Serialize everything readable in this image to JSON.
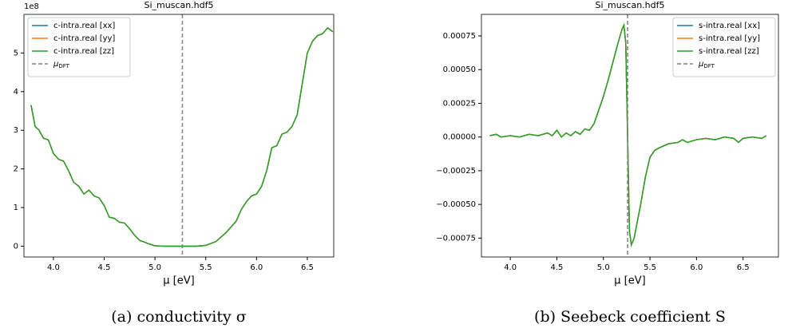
{
  "chart_data": [
    {
      "type": "line",
      "title": "Si_muscan.hdf5",
      "xlabel": "μ [eV]",
      "caption": "(a) conductivity σ",
      "offset_text": "1e8",
      "x": [
        3.78,
        3.82,
        3.86,
        3.9,
        3.95,
        4.0,
        4.05,
        4.1,
        4.15,
        4.2,
        4.25,
        4.3,
        4.35,
        4.4,
        4.45,
        4.5,
        4.55,
        4.6,
        4.65,
        4.7,
        4.75,
        4.8,
        4.85,
        4.9,
        4.95,
        5.0,
        5.1,
        5.2,
        5.3,
        5.4,
        5.5,
        5.6,
        5.7,
        5.8,
        5.85,
        5.9,
        5.95,
        6.0,
        6.05,
        6.1,
        6.15,
        6.2,
        6.25,
        6.3,
        6.35,
        6.4,
        6.45,
        6.5,
        6.55,
        6.6,
        6.65,
        6.7,
        6.75
      ],
      "series": [
        {
          "name": "c-intra.real [xx]",
          "color": "#1f77b4",
          "values": [
            3.65,
            3.1,
            3.0,
            2.8,
            2.75,
            2.4,
            2.25,
            2.2,
            1.95,
            1.65,
            1.55,
            1.35,
            1.45,
            1.3,
            1.25,
            1.05,
            0.75,
            0.72,
            0.62,
            0.6,
            0.45,
            0.28,
            0.15,
            0.1,
            0.05,
            0.01,
            0,
            0,
            0,
            0,
            0.02,
            0.12,
            0.35,
            0.65,
            0.95,
            1.15,
            1.3,
            1.35,
            1.55,
            1.95,
            2.55,
            2.6,
            2.9,
            2.95,
            3.1,
            3.4,
            4.2,
            5.0,
            5.3,
            5.45,
            5.5,
            5.65,
            5.55
          ]
        },
        {
          "name": "c-intra.real [yy]",
          "color": "#ff7f0e",
          "values": [
            3.65,
            3.1,
            3.0,
            2.8,
            2.75,
            2.4,
            2.25,
            2.2,
            1.95,
            1.65,
            1.55,
            1.35,
            1.45,
            1.3,
            1.25,
            1.05,
            0.75,
            0.72,
            0.62,
            0.6,
            0.45,
            0.28,
            0.15,
            0.1,
            0.05,
            0.01,
            0,
            0,
            0,
            0,
            0.02,
            0.12,
            0.35,
            0.65,
            0.95,
            1.15,
            1.3,
            1.35,
            1.55,
            1.95,
            2.55,
            2.6,
            2.9,
            2.95,
            3.1,
            3.4,
            4.2,
            5.0,
            5.3,
            5.45,
            5.5,
            5.65,
            5.55
          ]
        },
        {
          "name": "c-intra.real [zz]",
          "color": "#2ca02c",
          "values": [
            3.65,
            3.1,
            3.0,
            2.8,
            2.75,
            2.4,
            2.25,
            2.2,
            1.95,
            1.65,
            1.55,
            1.35,
            1.45,
            1.3,
            1.25,
            1.05,
            0.75,
            0.72,
            0.62,
            0.6,
            0.45,
            0.28,
            0.15,
            0.1,
            0.05,
            0.01,
            0,
            0,
            0,
            0,
            0.02,
            0.12,
            0.35,
            0.65,
            0.95,
            1.15,
            1.3,
            1.35,
            1.55,
            1.95,
            2.55,
            2.6,
            2.9,
            2.95,
            3.1,
            3.4,
            4.2,
            5.0,
            5.3,
            5.45,
            5.5,
            5.65,
            5.55
          ]
        }
      ],
      "vline": {
        "x": 5.27,
        "label": "μ",
        "label_sub": "DFT",
        "color": "#808080"
      },
      "xlim": [
        3.71,
        6.76
      ],
      "xticks": [
        {
          "value": 4.0,
          "label": "4.0"
        },
        4.5,
        {
          "value": 5.0,
          "label": "5.0"
        },
        5.5,
        {
          "value": 6.0,
          "label": "6.0"
        },
        6.5
      ],
      "ylim": [
        -0.28,
        6.0
      ],
      "yticks": [
        0,
        1,
        2,
        3,
        4,
        5
      ],
      "legend": "upper left"
    },
    {
      "type": "line",
      "title": "Si_muscan.hdf5",
      "xlabel": "μ [eV]",
      "caption": "(b) Seebeck coefficient S",
      "x": [
        3.78,
        3.85,
        3.9,
        4.0,
        4.1,
        4.2,
        4.3,
        4.4,
        4.45,
        4.5,
        4.55,
        4.6,
        4.65,
        4.7,
        4.75,
        4.8,
        4.85,
        4.9,
        4.95,
        5.0,
        5.05,
        5.1,
        5.15,
        5.2,
        5.22,
        5.24,
        5.26,
        5.28,
        5.3,
        5.33,
        5.4,
        5.45,
        5.5,
        5.55,
        5.6,
        5.7,
        5.8,
        5.85,
        5.9,
        6.0,
        6.1,
        6.2,
        6.3,
        6.4,
        6.45,
        6.5,
        6.6,
        6.7,
        6.75
      ],
      "series": [
        {
          "name": "s-intra.real [xx]",
          "color": "#1f77b4",
          "values": [
            1e-05,
            2e-05,
            0.0,
            1e-05,
            0.0,
            2e-05,
            1e-05,
            3e-05,
            1e-05,
            5e-05,
            0.0,
            3e-05,
            1e-05,
            4e-05,
            2e-05,
            6e-05,
            5e-05,
            0.0001,
            0.0002,
            0.0003,
            0.00042,
            0.00055,
            0.00068,
            0.0008,
            0.00083,
            0.0007,
            0.0,
            -0.0007,
            -0.0008,
            -0.00075,
            -0.0005,
            -0.0003,
            -0.00015,
            -0.0001,
            -8e-05,
            -5e-05,
            -4e-05,
            -2e-05,
            -4e-05,
            -2e-05,
            -1e-05,
            -2e-05,
            0.0,
            -1e-05,
            -4e-05,
            -1e-05,
            0.0,
            -1e-05,
            1e-05
          ]
        },
        {
          "name": "s-intra.real [yy]",
          "color": "#ff7f0e",
          "values": [
            1e-05,
            2e-05,
            0.0,
            1e-05,
            0.0,
            2e-05,
            1e-05,
            3e-05,
            1e-05,
            5e-05,
            0.0,
            3e-05,
            1e-05,
            4e-05,
            2e-05,
            6e-05,
            5e-05,
            0.0001,
            0.0002,
            0.0003,
            0.00042,
            0.00055,
            0.00068,
            0.0008,
            0.00083,
            0.0007,
            0.0,
            -0.0007,
            -0.0008,
            -0.00075,
            -0.0005,
            -0.0003,
            -0.00015,
            -0.0001,
            -8e-05,
            -5e-05,
            -4e-05,
            -2e-05,
            -4e-05,
            -2e-05,
            -1e-05,
            -2e-05,
            0.0,
            -1e-05,
            -4e-05,
            -1e-05,
            0.0,
            -1e-05,
            1e-05
          ]
        },
        {
          "name": "s-intra.real [zz]",
          "color": "#2ca02c",
          "values": [
            1e-05,
            2e-05,
            0.0,
            1e-05,
            0.0,
            2e-05,
            1e-05,
            3e-05,
            1e-05,
            5e-05,
            0.0,
            3e-05,
            1e-05,
            4e-05,
            2e-05,
            6e-05,
            5e-05,
            0.0001,
            0.0002,
            0.0003,
            0.00042,
            0.00055,
            0.00068,
            0.0008,
            0.00083,
            0.0007,
            0.0,
            -0.0007,
            -0.0008,
            -0.00075,
            -0.0005,
            -0.0003,
            -0.00015,
            -0.0001,
            -8e-05,
            -5e-05,
            -4e-05,
            -2e-05,
            -4e-05,
            -2e-05,
            -1e-05,
            -2e-05,
            0.0,
            -1e-05,
            -4e-05,
            -1e-05,
            0.0,
            -1e-05,
            1e-05
          ]
        }
      ],
      "vline": {
        "x": 5.26,
        "label": "μ",
        "label_sub": "DFT",
        "color": "#808080"
      },
      "xlim": [
        3.69,
        6.88
      ],
      "xticks": [
        {
          "value": 4.0,
          "label": "4.0"
        },
        4.5,
        {
          "value": 5.0,
          "label": "5.0"
        },
        5.5,
        {
          "value": 6.0,
          "label": "6.0"
        },
        6.5
      ],
      "ylim": [
        -0.00089,
        0.00091
      ],
      "yticks": [
        {
          "value": -0.00075,
          "label": "−0.00075"
        },
        {
          "value": -0.0005,
          "label": "−0.00050"
        },
        {
          "value": -0.00025,
          "label": "−0.00025"
        },
        {
          "value": 0,
          "label": "0.00000"
        },
        {
          "value": 0.00025,
          "label": "0.00025"
        },
        {
          "value": 0.0005,
          "label": "0.00050"
        },
        {
          "value": 0.00075,
          "label": "0.00075"
        }
      ],
      "legend": "upper right"
    }
  ]
}
